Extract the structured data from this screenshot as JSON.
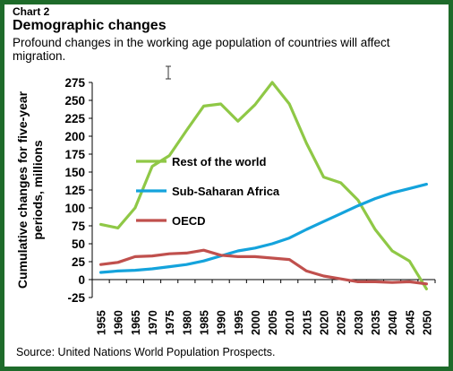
{
  "header": {
    "chart_label": "Chart 2",
    "title": "Demographic changes",
    "subtitle": "Profound changes in the working age population of countries will affect migration."
  },
  "footer": {
    "source": "Source: United Nations World Population Prospects."
  },
  "colors": {
    "border": "#1e6b2a",
    "rest_of_world": "#8fc846",
    "sub_saharan_africa": "#14a3dc",
    "oecd": "#c0504d"
  },
  "chart_data": {
    "type": "line",
    "title": "Demographic changes",
    "ylabel": "Cumulative changes for five-year periods, millions",
    "xlabel": "",
    "ylim": [
      -25,
      275
    ],
    "yticks": [
      -25,
      0,
      25,
      50,
      75,
      100,
      125,
      150,
      175,
      200,
      225,
      250,
      275
    ],
    "x": [
      "1955",
      "1960",
      "1965",
      "1970",
      "1975",
      "1980",
      "1985",
      "1990",
      "1995",
      "2000",
      "2005",
      "2010",
      "2015",
      "2020",
      "2025",
      "2030",
      "2035",
      "2040",
      "2045",
      "2050"
    ],
    "grid": false,
    "legend": "inside-right",
    "series": [
      {
        "name": "Rest of the world",
        "values": [
          77,
          72,
          100,
          158,
          173,
          208,
          242,
          245,
          221,
          244,
          275,
          245,
          190,
          143,
          135,
          111,
          70,
          40,
          26,
          -13
        ]
      },
      {
        "name": "Sub-Saharan Africa",
        "values": [
          10,
          12,
          13,
          15,
          18,
          21,
          26,
          33,
          40,
          44,
          50,
          58,
          70,
          81,
          92,
          103,
          113,
          121,
          127,
          133
        ]
      },
      {
        "name": "OECD",
        "values": [
          21,
          24,
          32,
          33,
          36,
          37,
          41,
          34,
          32,
          32,
          30,
          28,
          12,
          5,
          1,
          -3,
          -3,
          -4,
          -3,
          -6
        ]
      }
    ]
  }
}
